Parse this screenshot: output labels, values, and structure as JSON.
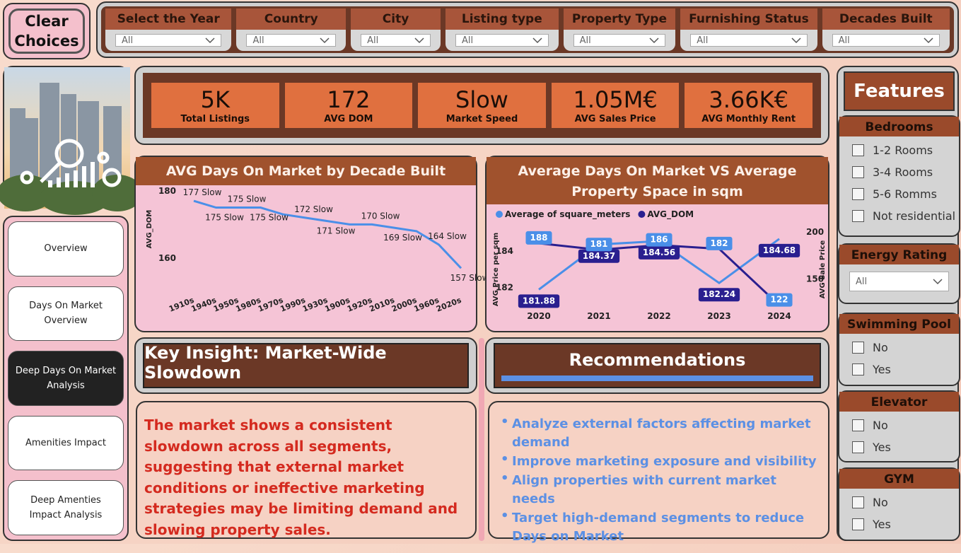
{
  "clear_button": "Clear Choices",
  "filters": [
    {
      "label": "Select the Year",
      "value": "All"
    },
    {
      "label": "Country",
      "value": "All"
    },
    {
      "label": "City",
      "value": "All"
    },
    {
      "label": "Listing type",
      "value": "All"
    },
    {
      "label": "Property Type",
      "value": "All"
    },
    {
      "label": "Furnishing Status",
      "value": "All"
    },
    {
      "label": "Decades Built",
      "value": "All"
    }
  ],
  "navigation": [
    {
      "label": "Overview",
      "active": false
    },
    {
      "label": "Days On Market Overview",
      "active": false
    },
    {
      "label": "Deep Days On Market Analysis",
      "active": true
    },
    {
      "label": "Amenities Impact",
      "active": false
    },
    {
      "label": "Deep Amenties Impact Analysis",
      "active": false
    }
  ],
  "kpis": [
    {
      "value": "5K",
      "label": "Total Listings"
    },
    {
      "value": "172",
      "label": "AVG DOM"
    },
    {
      "value": "Slow",
      "label": "Market Speed"
    },
    {
      "value": "1.05M€",
      "label": "AVG Sales Price"
    },
    {
      "value": "3.66K€",
      "label": "AVG Monthly Rent"
    }
  ],
  "chart_data": [
    {
      "type": "line",
      "title": "AVG Days On Market by Decade Built",
      "y_label": "AVG_DOM",
      "categories": [
        "1910s",
        "1940s",
        "1950s",
        "1980s",
        "1970s",
        "1990s",
        "1930s",
        "1900s",
        "1920s",
        "2010s",
        "2000s",
        "1960s",
        "2020s"
      ],
      "values": [
        177,
        175,
        175,
        175,
        173,
        172,
        171,
        170,
        170,
        169,
        168,
        164,
        157
      ],
      "value_labels": [
        "177 Slow",
        "175 Slow",
        "175 Slow",
        "175 Slow",
        null,
        "172 Slow",
        "171 Slow",
        null,
        "170 Slow",
        "169 Slow",
        null,
        "164 Slow",
        "157 Slow"
      ],
      "color": "#4a8fe8",
      "ylim": [
        156,
        181
      ],
      "yticks": [
        160,
        180
      ]
    },
    {
      "type": "line",
      "title": "Average Days On Market VS Average Property Space in sqm",
      "y_label": "AVG Price per sqm",
      "y2_label": "AVG Sale Price",
      "x": [
        2020,
        2021,
        2022,
        2023,
        2024
      ],
      "xlim": [
        2019.6,
        2024.4
      ],
      "xticks": [
        2020,
        2021,
        2022,
        2023,
        2024
      ],
      "ylim": [
        180.8,
        185.3
      ],
      "yticks": [
        182,
        184
      ],
      "y2lim": [
        118,
        204.5
      ],
      "y2ticks": [
        150,
        200
      ],
      "series": [
        {
          "name": "Average of square_meters",
          "color": "#4a8fe8",
          "values": [
            181.88,
            184.37,
            184.56,
            182.24,
            184.68
          ]
        },
        {
          "name": "AVG_DOM",
          "color": "#2a1f8f",
          "axis": "y2",
          "values": [
            188,
            181,
            186,
            182,
            122
          ]
        }
      ]
    }
  ],
  "insight": {
    "title": "Key Insight: Market-Wide Slowdown",
    "text": "The market shows a consistent slowdown across all segments, suggesting that external market conditions or ineffective marketing strategies may be limiting demand and slowing property sales."
  },
  "recommendations": {
    "title": "Recommendations",
    "items": [
      "Analyze external factors affecting market demand",
      "Improve marketing exposure and visibility",
      "Align properties with current market needs",
      "Target high-demand segments to reduce Days on Market"
    ]
  },
  "features": {
    "title": "Features",
    "sections": [
      {
        "title": "Bedrooms",
        "options": [
          "1-2 Rooms",
          "3-4 Rooms",
          "5-6 Romms",
          "Not residential"
        ]
      },
      {
        "title": "Energy Rating",
        "dropdown": "All"
      },
      {
        "title": "Swimming Pool",
        "options": [
          "No",
          "Yes"
        ]
      },
      {
        "title": "Elevator",
        "options": [
          "No",
          "Yes"
        ]
      },
      {
        "title": "GYM",
        "options": [
          "No",
          "Yes"
        ]
      }
    ]
  }
}
